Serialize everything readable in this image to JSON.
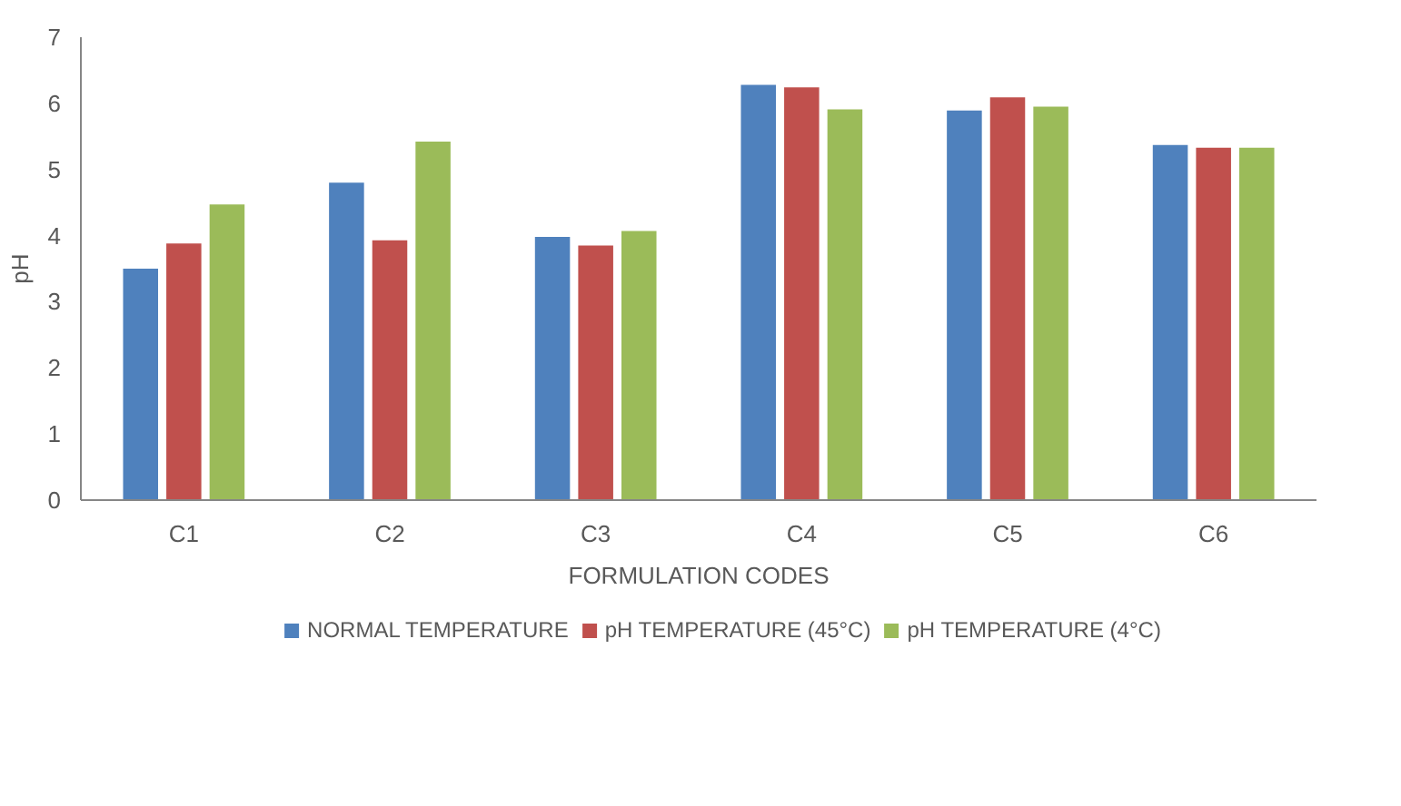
{
  "chart_data": {
    "type": "bar",
    "xlabel": "FORMULATION CODES",
    "ylabel": "pH",
    "categories": [
      "C1",
      "C2",
      "C3",
      "C4",
      "C5",
      "C6"
    ],
    "series": [
      {
        "name": "NORMAL TEMPERATURE",
        "color": "#4f81bd",
        "values": [
          3.5,
          4.8,
          3.98,
          6.28,
          5.89,
          5.37
        ]
      },
      {
        "name": "pH TEMPERATURE (45°C)",
        "color": "#c0504d",
        "values": [
          3.88,
          3.93,
          3.85,
          6.24,
          6.09,
          5.33
        ]
      },
      {
        "name": "pH TEMPERATURE (4°C)",
        "color": "#9bbb59",
        "values": [
          4.47,
          5.42,
          4.07,
          5.91,
          5.95,
          5.33
        ]
      }
    ],
    "ylim": [
      0,
      7
    ],
    "yticks": [
      0,
      1,
      2,
      3,
      4,
      5,
      6,
      7
    ],
    "grid": false,
    "legend": "bottom"
  }
}
